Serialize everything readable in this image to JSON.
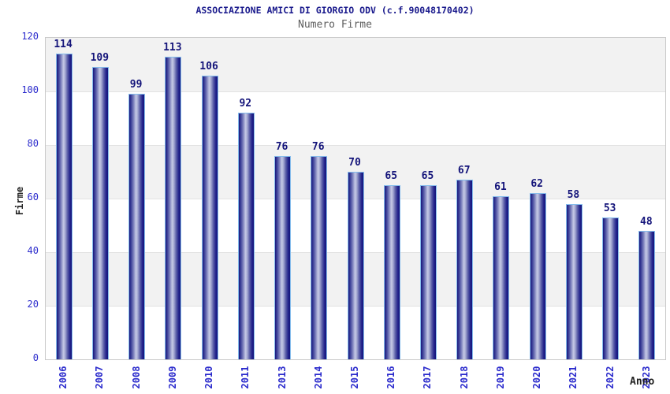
{
  "header": {
    "title": "ASSOCIAZIONE AMICI DI GIORGIO ODV (c.f.90048170402)",
    "subtitle": "Numero Firme"
  },
  "chart_data": {
    "type": "bar",
    "title": "Numero Firme",
    "categories": [
      "2006",
      "2007",
      "2008",
      "2009",
      "2010",
      "2011",
      "2013",
      "2014",
      "2015",
      "2016",
      "2017",
      "2018",
      "2019",
      "2020",
      "2021",
      "2022",
      "2023"
    ],
    "values": [
      114,
      109,
      99,
      113,
      106,
      92,
      76,
      76,
      70,
      65,
      65,
      67,
      61,
      62,
      58,
      53,
      48
    ],
    "xlabel": "Anno",
    "ylabel": "Firme",
    "ylim": [
      0,
      120
    ],
    "yticks": [
      0,
      20,
      40,
      60,
      80,
      100,
      120
    ],
    "grid": "horizontal-bands-alternating",
    "legend": "none",
    "bar_labels_shown": true,
    "colors": {
      "bar_edge_dark": "#1A1A8C",
      "bar_center_light": "#C6CAE6",
      "bar_cap_border": "#85BCEC",
      "axis_tick_text": "#2A2ACC",
      "value_text": "#14147A",
      "title_text": "#19198C",
      "subtitle_text": "#5E5E5E",
      "axis_title_text": "#222222",
      "band_gray": "#F2F2F2",
      "plot_border": "#C9C9C9"
    }
  }
}
